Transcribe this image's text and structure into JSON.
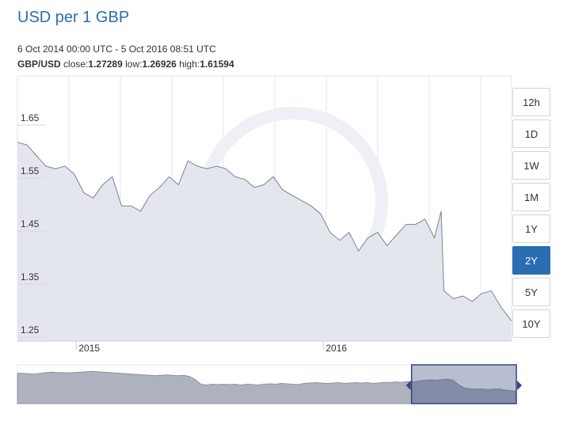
{
  "header": {
    "title": "USD per 1 GBP",
    "range_text": "6 Oct 2014 00:00 UTC - 5 Oct 2016 08:51 UTC",
    "pair": "GBP/USD",
    "close_label": "close:",
    "close_value": "1.27289",
    "low_label": "low:",
    "low_value": "1.26926",
    "high_label": "high:",
    "high_value": "1.61594"
  },
  "range_buttons": [
    "12h",
    "1D",
    "1W",
    "1M",
    "1Y",
    "2Y",
    "5Y",
    "10Y"
  ],
  "active_range": "2Y",
  "colors": {
    "title": "#2a6db0",
    "line": "#7b8196",
    "area": "#e4e6ee",
    "active_button": "#2a6db0",
    "navigator_area": "#aeb2be",
    "navigator_selected": "#34457e"
  },
  "chart_data": {
    "type": "area",
    "ylim": [
      1.25,
      1.7
    ],
    "y_ticks": [
      "1.65",
      "1.55",
      "1.45",
      "1.35",
      "1.25"
    ],
    "x_labels": [
      "2015",
      "2016"
    ],
    "grid": true,
    "series": [
      {
        "x": [
          "2014-10-06",
          "2014-10-20",
          "2014-11-03",
          "2014-11-17",
          "2014-12-01",
          "2014-12-15",
          "2014-12-29",
          "2015-01-12",
          "2015-01-26",
          "2015-02-09",
          "2015-02-23",
          "2015-03-09",
          "2015-03-23",
          "2015-04-06",
          "2015-04-20",
          "2015-05-04",
          "2015-05-18",
          "2015-06-01",
          "2015-06-15",
          "2015-06-29",
          "2015-07-13",
          "2015-07-27",
          "2015-08-10",
          "2015-08-24",
          "2015-09-07",
          "2015-09-21",
          "2015-10-05",
          "2015-10-19",
          "2015-11-02",
          "2015-11-16",
          "2015-11-30",
          "2015-12-14",
          "2015-12-28",
          "2016-01-11",
          "2016-01-25",
          "2016-02-08",
          "2016-02-22",
          "2016-03-07",
          "2016-03-21",
          "2016-04-04",
          "2016-04-18",
          "2016-05-02",
          "2016-05-16",
          "2016-05-30",
          "2016-06-13",
          "2016-06-23",
          "2016-06-27",
          "2016-07-11",
          "2016-07-25",
          "2016-08-08",
          "2016-08-22",
          "2016-09-05",
          "2016-09-19",
          "2016-10-05"
        ],
        "values": [
          1.61,
          1.605,
          1.585,
          1.565,
          1.56,
          1.565,
          1.55,
          1.515,
          1.505,
          1.53,
          1.545,
          1.49,
          1.49,
          1.48,
          1.51,
          1.525,
          1.545,
          1.53,
          1.575,
          1.565,
          1.56,
          1.565,
          1.56,
          1.545,
          1.54,
          1.525,
          1.53,
          1.545,
          1.52,
          1.51,
          1.5,
          1.49,
          1.475,
          1.44,
          1.425,
          1.44,
          1.405,
          1.43,
          1.44,
          1.415,
          1.435,
          1.455,
          1.455,
          1.465,
          1.43,
          1.48,
          1.33,
          1.315,
          1.32,
          1.31,
          1.325,
          1.33,
          1.3,
          1.273
        ]
      }
    ]
  },
  "navigator_data": {
    "values": [
      0.78,
      0.78,
      0.77,
      0.76,
      0.78,
      0.8,
      0.81,
      0.8,
      0.8,
      0.79,
      0.8,
      0.81,
      0.82,
      0.83,
      0.82,
      0.81,
      0.8,
      0.79,
      0.78,
      0.77,
      0.76,
      0.75,
      0.74,
      0.73,
      0.72,
      0.73,
      0.74,
      0.73,
      0.72,
      0.73,
      0.7,
      0.62,
      0.5,
      0.48,
      0.5,
      0.49,
      0.5,
      0.49,
      0.5,
      0.48,
      0.5,
      0.49,
      0.48,
      0.5,
      0.51,
      0.5,
      0.52,
      0.51,
      0.5,
      0.49,
      0.52,
      0.53,
      0.54,
      0.53,
      0.52,
      0.53,
      0.54,
      0.52,
      0.53,
      0.54,
      0.53,
      0.54,
      0.52,
      0.53,
      0.55,
      0.54,
      0.56,
      0.55,
      0.57,
      0.56,
      0.58,
      0.6,
      0.61,
      0.6,
      0.62,
      0.63,
      0.6,
      0.48,
      0.4,
      0.38,
      0.37,
      0.38,
      0.36,
      0.37,
      0.38,
      0.35,
      0.33,
      0.32
    ],
    "selection_start_fraction": 0.79
  }
}
